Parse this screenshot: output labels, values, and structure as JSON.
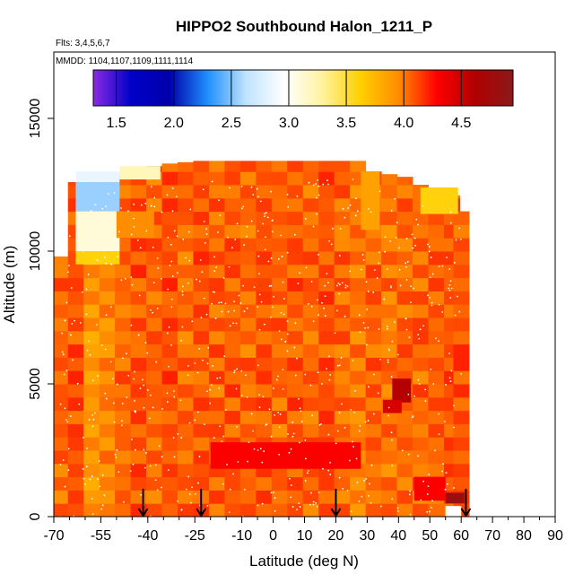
{
  "chart_data": {
    "type": "heatmap",
    "title": "HIPPO2 Southbound Halon_1211_P",
    "flights_label": "Flts: 3,4,5,6,7",
    "mmdd_label": "MMDD: 1104,1107,1109,1111,1114",
    "xlabel": "Latitude (deg N)",
    "ylabel": "Altitude (m)",
    "xlim": [
      -70,
      90
    ],
    "ylim": [
      0,
      17500
    ],
    "x_ticks": [
      -70,
      -55,
      -40,
      -25,
      -10,
      0,
      10,
      20,
      30,
      40,
      50,
      60,
      70,
      80,
      90
    ],
    "x_tick_labels": [
      "-70",
      "-55",
      "-40",
      "-25",
      "-10",
      "0",
      "10",
      "20",
      "30",
      "40",
      "50",
      "60",
      "70",
      "80",
      "90"
    ],
    "x_minor_ticks": [
      -65,
      -60,
      -50,
      -45,
      -35,
      -30,
      -20,
      -15,
      -5,
      5,
      15,
      25,
      35,
      45,
      55,
      65,
      75,
      85
    ],
    "y_ticks": [
      0,
      5000,
      10000,
      15000
    ],
    "y_tick_labels": [
      "0",
      "5000",
      "10000",
      "15000"
    ],
    "colorbar": {
      "min": 1.3,
      "max": 4.95,
      "ticks": [
        1.5,
        2.0,
        2.5,
        3.0,
        3.5,
        4.0,
        4.5
      ],
      "tick_labels": [
        "1.5",
        "2.0",
        "2.5",
        "3.0",
        "3.5",
        "4.0",
        "4.5"
      ],
      "stops": [
        "#8a2be2",
        "#0000c8",
        "#0000aa",
        "#1e90ff",
        "#bfe3ff",
        "#ffffff",
        "#fff3a0",
        "#ffd000",
        "#ff8c00",
        "#ff0000",
        "#b00000",
        "#8b1a1a"
      ]
    },
    "columns": [
      {
        "lat": -68,
        "top": 9800,
        "value": 4.05
      },
      {
        "lat": -63,
        "top": 12600,
        "value": 4.1
      },
      {
        "lat": -58,
        "top": 12600,
        "value": 3.9
      },
      {
        "lat": -53,
        "top": 12900,
        "value": 3.95
      },
      {
        "lat": -48,
        "top": 12900,
        "value": 4.05
      },
      {
        "lat": -43,
        "top": 13000,
        "value": 4.1
      },
      {
        "lat": -38,
        "top": 13200,
        "value": 4.05
      },
      {
        "lat": -33,
        "top": 13300,
        "value": 4.1
      },
      {
        "lat": -28,
        "top": 13350,
        "value": 4.05
      },
      {
        "lat": -23,
        "top": 13400,
        "value": 4.1
      },
      {
        "lat": -18,
        "top": 13400,
        "value": 4.05
      },
      {
        "lat": -13,
        "top": 13400,
        "value": 4.1
      },
      {
        "lat": -8,
        "top": 13400,
        "value": 4.05
      },
      {
        "lat": -3,
        "top": 13400,
        "value": 4.1
      },
      {
        "lat": 2,
        "top": 13400,
        "value": 4.05
      },
      {
        "lat": 7,
        "top": 13400,
        "value": 4.1
      },
      {
        "lat": 12,
        "top": 13400,
        "value": 4.05
      },
      {
        "lat": 17,
        "top": 13400,
        "value": 4.1
      },
      {
        "lat": 22,
        "top": 13400,
        "value": 4.05
      },
      {
        "lat": 27,
        "top": 13400,
        "value": 4.0
      },
      {
        "lat": 32,
        "top": 13000,
        "value": 4.05
      },
      {
        "lat": 37,
        "top": 12900,
        "value": 4.0
      },
      {
        "lat": 42,
        "top": 12800,
        "value": 4.05
      },
      {
        "lat": 47,
        "top": 12500,
        "value": 4.05
      },
      {
        "lat": 52,
        "top": 12300,
        "value": 4.05
      },
      {
        "lat": 57,
        "top": 12100,
        "value": 4.1
      },
      {
        "lat": 60,
        "top": 11500,
        "value": 4.1
      }
    ],
    "column_width": 5,
    "anomalies": [
      {
        "lat_min": -63,
        "lat_max": -49,
        "alt_min": 11500,
        "alt_max": 12600,
        "value": 2.55
      },
      {
        "lat_min": -63,
        "lat_max": -49,
        "alt_min": 12600,
        "alt_max": 13000,
        "value": 2.85
      },
      {
        "lat_min": -49,
        "lat_max": -36,
        "alt_min": 12700,
        "alt_max": 13200,
        "value": 3.2
      },
      {
        "lat_min": -63,
        "lat_max": -49,
        "alt_min": 10000,
        "alt_max": 11500,
        "value": 3.1
      },
      {
        "lat_min": -63,
        "lat_max": -49,
        "alt_min": 9500,
        "alt_max": 10000,
        "value": 3.6
      },
      {
        "lat_min": 47,
        "lat_max": 59,
        "alt_min": 11400,
        "alt_max": 12400,
        "value": 3.6
      },
      {
        "lat_min": 28,
        "lat_max": 34,
        "alt_min": 10800,
        "alt_max": 13000,
        "value": 3.85
      },
      {
        "lat_min": -50,
        "lat_max": -38,
        "alt_min": 10500,
        "alt_max": 11500,
        "value": 3.95
      },
      {
        "lat_min": 38,
        "lat_max": 44,
        "alt_min": 4300,
        "alt_max": 5200,
        "value": 4.6
      },
      {
        "lat_min": 35,
        "lat_max": 41,
        "alt_min": 3900,
        "alt_max": 4400,
        "value": 4.45
      },
      {
        "lat_min": -20,
        "lat_max": 28,
        "alt_min": 1800,
        "alt_max": 2800,
        "value": 4.3
      },
      {
        "lat_min": 55,
        "lat_max": 61,
        "alt_min": 500,
        "alt_max": 900,
        "value": 4.8
      },
      {
        "lat_min": 45,
        "lat_max": 55,
        "alt_min": 600,
        "alt_max": 1500,
        "value": 4.3
      }
    ],
    "gaps": [
      {
        "lat_min": 55,
        "lat_max": 60,
        "alt_min": 0,
        "alt_max": 400
      }
    ],
    "profile_markers_lat": [
      -41.5,
      -23,
      20,
      61.5
    ]
  }
}
